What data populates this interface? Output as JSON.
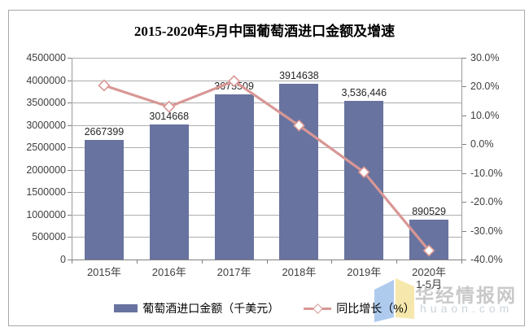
{
  "title": "2015-2020年5月中国葡萄酒进口金额及增速",
  "chart_data": {
    "type": "combo-bar-line",
    "title": "2015-2020年5月中国葡萄酒进口金额及增速",
    "categories": [
      "2015年",
      "2016年",
      "2017年",
      "2018年",
      "2019年",
      "2020年"
    ],
    "category_sublabels": [
      "",
      "",
      "",
      "",
      "",
      "1-5月"
    ],
    "series": [
      {
        "name": "葡萄酒进口金额（千美元）",
        "type": "bar",
        "axis": "left",
        "values": [
          2667399,
          3014668,
          3675509,
          3914638,
          3536446,
          890529
        ],
        "data_labels": [
          "2667399",
          "3014668",
          "3675509",
          "3914638",
          "3,536,446",
          "890529"
        ]
      },
      {
        "name": "同比增长（%）",
        "type": "line",
        "axis": "right",
        "marker": "diamond",
        "values": [
          20.4,
          13.0,
          21.9,
          6.5,
          -9.7,
          -36.9
        ]
      }
    ],
    "left_axis": {
      "min": 0,
      "max": 4500000,
      "step": 500000,
      "tick_labels": [
        "4500000",
        "4000000",
        "3500000",
        "3000000",
        "2500000",
        "2000000",
        "1500000",
        "1000000",
        "500000",
        "0"
      ]
    },
    "right_axis": {
      "min": -40,
      "max": 30,
      "step": 10,
      "tick_labels": [
        "30.0%",
        "20.0%",
        "10.0%",
        "0.0%",
        "-10.0%",
        "-20.0%",
        "-30.0%",
        "-40.0%"
      ]
    },
    "gridlines": true,
    "legend_position": "bottom"
  },
  "legend": {
    "items": [
      {
        "label": "葡萄酒进口金额（千美元）",
        "swatch": "bar-swatch"
      },
      {
        "label": "同比增长（%）",
        "swatch": "line-diamond-swatch"
      }
    ]
  },
  "watermark": {
    "logo": "open-book-logo",
    "site_name": "华经情报网",
    "site_url": "huaon.com"
  },
  "colors": {
    "bar": "#68739F",
    "line": "#D89795",
    "marker_fill": "#FFFFFF",
    "grid": "#ADADAD",
    "axis_text": "#3F3F3F",
    "watermark_text": "#C9C9C9",
    "logo_blue": "#AECBEE",
    "logo_yellow": "#F6E8AC"
  }
}
